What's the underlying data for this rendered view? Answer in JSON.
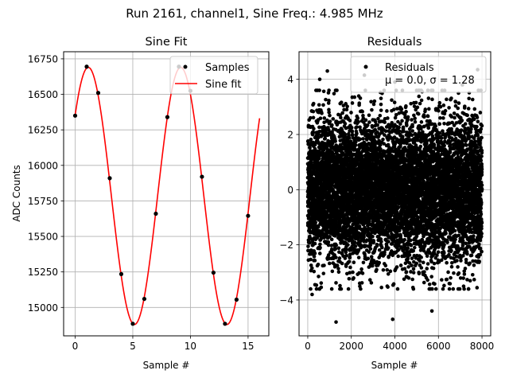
{
  "figure": {
    "suptitle": "Run 2161, channel1, Sine Freq.: 4.985 MHz"
  },
  "chart_data": [
    {
      "type": "line",
      "title": "Sine Fit",
      "xlabel": "Sample #",
      "ylabel": "ADC Counts",
      "xlim": [
        -1.0,
        16.8
      ],
      "ylim": [
        14800,
        16800
      ],
      "xticks": [
        0,
        5,
        10,
        15
      ],
      "yticks": [
        15000,
        15250,
        15500,
        15750,
        16000,
        16250,
        16500,
        16750
      ],
      "ytick_labels": [
        "15000",
        "15250",
        "15500",
        "15750",
        "16000",
        "16250",
        "16500",
        "16750"
      ],
      "grid": true,
      "legend": {
        "position": "top-right",
        "entries": [
          "Samples",
          "Sine fit"
        ]
      },
      "series": [
        {
          "name": "Samples",
          "style": "scatter",
          "color": "#000000",
          "x": [
            0,
            1,
            2,
            3,
            4,
            5,
            6,
            7,
            8,
            9,
            10,
            11,
            12,
            13,
            14,
            15
          ],
          "y": [
            16350,
            16695,
            16510,
            15910,
            15235,
            14885,
            15060,
            15660,
            16340,
            16695,
            16525,
            15920,
            15245,
            14885,
            15055,
            15645
          ]
        },
        {
          "name": "Sine fit",
          "style": "line",
          "color": "#ff0000",
          "model": {
            "offset": 15785,
            "amplitude": 905,
            "period": 8.02,
            "phase": 0.68,
            "x_start": 0,
            "x_end": 16
          }
        }
      ]
    },
    {
      "type": "scatter",
      "title": "Residuals",
      "xlabel": "Sample #",
      "ylabel": "",
      "xlim": [
        -400,
        8400
      ],
      "ylim": [
        -5.3,
        5.0
      ],
      "xticks": [
        0,
        2000,
        4000,
        6000,
        8000
      ],
      "yticks": [
        -4,
        -2,
        0,
        2,
        4
      ],
      "ytick_labels": [
        "−4",
        "−2",
        "0",
        "2",
        "4"
      ],
      "grid": true,
      "legend": {
        "position": "top-right",
        "entries": [
          "Residuals",
          "μ = 0.0, σ = 1.28"
        ]
      },
      "series": [
        {
          "name": "Residuals",
          "color": "#000000",
          "count": 8000,
          "mean": 0.0,
          "std": 1.28,
          "x_range": [
            0,
            8000
          ],
          "outliers": [
            [
              900,
              4.3
            ],
            [
              1300,
              -4.8
            ],
            [
              3900,
              -4.7
            ],
            [
              550,
              4.0
            ],
            [
              2600,
              4.15
            ],
            [
              7800,
              4.35
            ],
            [
              5700,
              -4.4
            ],
            [
              7100,
              3.8
            ],
            [
              200,
              -3.8
            ],
            [
              4000,
              3.9
            ]
          ]
        }
      ]
    }
  ]
}
